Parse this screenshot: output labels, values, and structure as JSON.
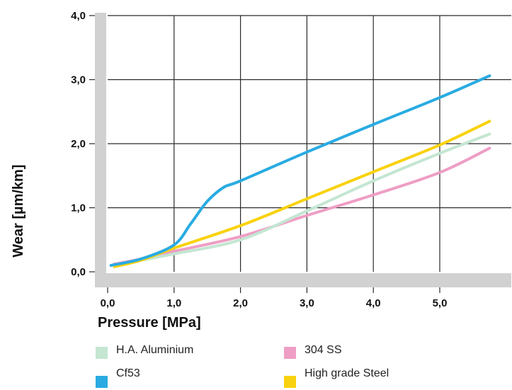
{
  "chart_data": {
    "type": "line",
    "title": "",
    "xlabel": "Pressure [MPa]",
    "ylabel": "Wear [µm/km]",
    "xlim": [
      0,
      6.3
    ],
    "ylim": [
      0,
      4.0
    ],
    "x_ticks": [
      0,
      1,
      2,
      3,
      4,
      5
    ],
    "y_ticks": [
      0,
      1,
      2,
      3,
      4
    ],
    "x_tick_labels": [
      "0,0",
      "1,0",
      "2,0",
      "3,0",
      "4,0",
      "5,0"
    ],
    "y_tick_labels": [
      "0,0",
      "1,0",
      "2,0",
      "3,0",
      "4,0"
    ],
    "grid": true,
    "legend_position": "bottom",
    "series": [
      {
        "name": "Cf53",
        "color": "#29abe2",
        "points": [
          [
            0.05,
            0.1
          ],
          [
            0.5,
            0.2
          ],
          [
            1.0,
            0.42
          ],
          [
            1.25,
            0.75
          ],
          [
            1.5,
            1.1
          ],
          [
            1.75,
            1.32
          ],
          [
            2.0,
            1.42
          ],
          [
            3.0,
            1.87
          ],
          [
            4.0,
            2.3
          ],
          [
            5.0,
            2.72
          ],
          [
            5.75,
            3.06
          ]
        ]
      },
      {
        "name": "High grade Steel",
        "color": "#f8d20e",
        "points": [
          [
            0.1,
            0.08
          ],
          [
            0.5,
            0.18
          ],
          [
            1.0,
            0.37
          ],
          [
            2.0,
            0.72
          ],
          [
            3.0,
            1.14
          ],
          [
            4.0,
            1.56
          ],
          [
            5.0,
            1.98
          ],
          [
            5.75,
            2.35
          ]
        ]
      },
      {
        "name": "H.A. Aluminium",
        "color": "#c4e6d2",
        "points": [
          [
            0.1,
            0.1
          ],
          [
            0.5,
            0.18
          ],
          [
            1.0,
            0.28
          ],
          [
            2.0,
            0.5
          ],
          [
            3.0,
            0.95
          ],
          [
            4.0,
            1.42
          ],
          [
            5.0,
            1.85
          ],
          [
            5.75,
            2.15
          ]
        ]
      },
      {
        "name": "304 SS",
        "color": "#ee9ec4",
        "points": [
          [
            0.1,
            0.12
          ],
          [
            0.5,
            0.2
          ],
          [
            1.0,
            0.32
          ],
          [
            2.0,
            0.55
          ],
          [
            3.0,
            0.88
          ],
          [
            4.0,
            1.2
          ],
          [
            5.0,
            1.55
          ],
          [
            5.75,
            1.93
          ]
        ]
      }
    ],
    "legend": [
      {
        "label": "H.A. Aluminium",
        "color": "#c4e6d2"
      },
      {
        "label": "Cf53",
        "color": "#29abe2"
      },
      {
        "label": "304 SS",
        "color": "#ee9ec4"
      },
      {
        "label": "High grade Steel",
        "color": "#f8d20e"
      }
    ]
  }
}
